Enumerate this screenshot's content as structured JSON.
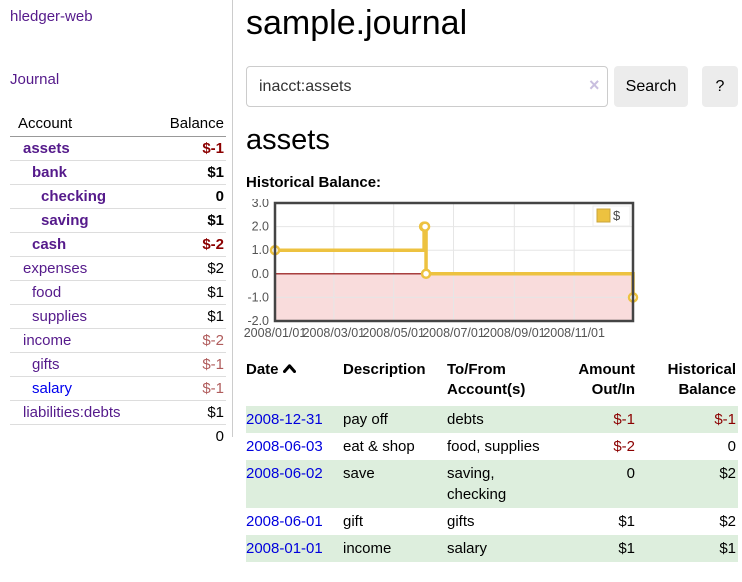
{
  "app": {
    "brand": "hledger-web",
    "nav_journal": "Journal"
  },
  "sidebar": {
    "header": {
      "account": "Account",
      "balance": "Balance"
    },
    "accounts": [
      {
        "name": "assets",
        "balance": "$-1",
        "depth": 1,
        "bold": true
      },
      {
        "name": "bank",
        "balance": "$1",
        "depth": 2,
        "bold": true
      },
      {
        "name": "checking",
        "balance": "0",
        "depth": 3,
        "bold": true
      },
      {
        "name": "saving",
        "balance": "$1",
        "depth": 3,
        "bold": true
      },
      {
        "name": "cash",
        "balance": "$-2",
        "depth": 2,
        "bold": true
      },
      {
        "name": "expenses",
        "balance": "$2",
        "depth": 1,
        "bold": false
      },
      {
        "name": "food",
        "balance": "$1",
        "depth": 2,
        "bold": false
      },
      {
        "name": "supplies",
        "balance": "$1",
        "depth": 2,
        "bold": false
      },
      {
        "name": "income",
        "balance": "$-2",
        "depth": 1,
        "bold": false
      },
      {
        "name": "gifts",
        "balance": "$-1",
        "depth": 2,
        "bold": false
      },
      {
        "name": "salary",
        "balance": "$-1",
        "depth": 2,
        "bold": false,
        "unvisited": true
      },
      {
        "name": "liabilities:debts",
        "balance": "$1",
        "depth": 1,
        "bold": false
      }
    ],
    "total": "0"
  },
  "header": {
    "title": "sample.journal"
  },
  "search": {
    "value": "inacct:assets",
    "clear_icon": "×",
    "button": "Search",
    "help_button": "?"
  },
  "account_page": {
    "heading": "assets",
    "chart_title": "Historical Balance:"
  },
  "chart_data": {
    "type": "line",
    "step": true,
    "series": [
      {
        "name": "$",
        "color": "#EDC240",
        "points": [
          {
            "x": "2008-01-01",
            "y": 1
          },
          {
            "x": "2008-06-01",
            "y": 2
          },
          {
            "x": "2008-06-02",
            "y": 2
          },
          {
            "x": "2008-06-03",
            "y": 0
          },
          {
            "x": "2008-12-31",
            "y": -1
          }
        ]
      }
    ],
    "x_ticks": [
      "2008/01/01",
      "2008/03/01",
      "2008/05/01",
      "2008/07/01",
      "2008/09/01",
      "2008/11/01"
    ],
    "y_ticks": [
      "3.0",
      "2.0",
      "1.0",
      "0.0",
      "-1.0",
      "-2.0"
    ],
    "xlim": [
      "2008-01-01",
      "2008-12-31"
    ],
    "ylim": [
      -2,
      3
    ],
    "legend": {
      "label": "$",
      "position": "top-right"
    },
    "grid": true,
    "colors": {
      "negative_region": "#f9dcdc",
      "zero_line": "#8b0000",
      "border": "#444444",
      "gridline": "#e6e6e6",
      "tick_text": "#545454"
    }
  },
  "register": {
    "columns": {
      "date": "Date",
      "description": "Description",
      "tofrom": "To/From Account(s)",
      "amount": "Amount Out/In",
      "balance": "Historical Balance"
    },
    "rows": [
      {
        "date": "2008-12-31",
        "description": "pay off",
        "accounts": "debts",
        "amount": "$-1",
        "balance": "$-1"
      },
      {
        "date": "2008-06-03",
        "description": "eat & shop",
        "accounts": "food, supplies",
        "amount": "$-2",
        "balance": "0"
      },
      {
        "date": "2008-06-02",
        "description": "save",
        "accounts": "saving, checking",
        "amount": "0",
        "balance": "$2"
      },
      {
        "date": "2008-06-01",
        "description": "gift",
        "accounts": "gifts",
        "amount": "$1",
        "balance": "$2"
      },
      {
        "date": "2008-01-01",
        "description": "income",
        "accounts": "salary",
        "amount": "$1",
        "balance": "$1"
      }
    ]
  }
}
